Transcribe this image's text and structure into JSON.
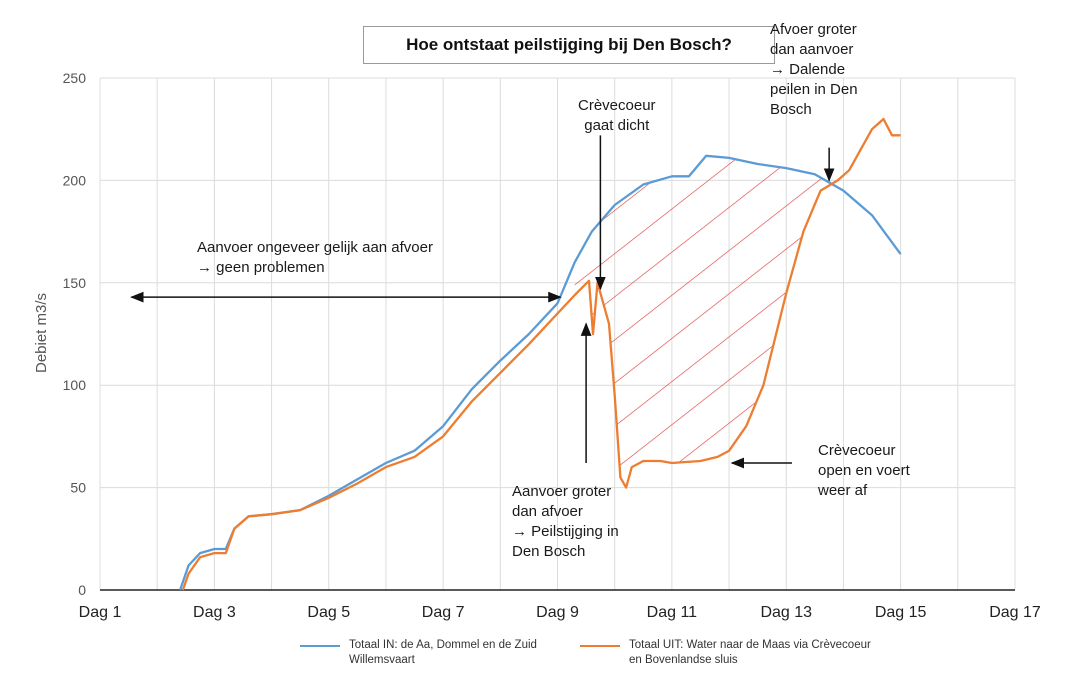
{
  "chart_data": {
    "type": "line",
    "title": "Hoe ontstaat peilstijging bij Den Bosch?",
    "ylabel": "Debiet m3/s",
    "xlabel": "",
    "ylim": [
      0,
      250
    ],
    "yticks": [
      "0",
      "50",
      "100",
      "150",
      "200",
      "250"
    ],
    "xlim": [
      1,
      17
    ],
    "xticks": [
      "Dag 1",
      "Dag 3",
      "Dag 5",
      "Dag 7",
      "Dag 9",
      "Dag 11",
      "Dag 13",
      "Dag 15",
      "Dag 17"
    ],
    "grid": true,
    "legend_position": "bottom",
    "colors": {
      "in": "#5b9bd5",
      "uit": "#ed7d31",
      "hatch": "#e03c3c"
    },
    "series": [
      {
        "name": "Totaal IN: de Aa, Dommel en de Zuid Willemsvaart",
        "x": [
          2.4,
          2.55,
          2.75,
          3.0,
          3.2,
          3.35,
          3.6,
          4.0,
          4.5,
          5.0,
          5.5,
          6.0,
          6.5,
          7.0,
          7.5,
          8.0,
          8.5,
          9.0,
          9.3,
          9.6,
          10.0,
          10.5,
          11.0,
          11.3,
          11.6,
          12.0,
          12.5,
          13.0,
          13.5,
          14.0,
          14.5,
          15.0
        ],
        "y": [
          0,
          12,
          18,
          20,
          20,
          30,
          36,
          37,
          39,
          46,
          54,
          62,
          68,
          80,
          98,
          112,
          125,
          140,
          160,
          175,
          188,
          198,
          202,
          202,
          212,
          211,
          208,
          206,
          203,
          195,
          183,
          164
        ]
      },
      {
        "name": "Totaal UIT: Water naar de Maas via Crèvecoeur en Bovenlandse sluis",
        "x": [
          2.45,
          2.55,
          2.75,
          3.0,
          3.2,
          3.35,
          3.6,
          4.0,
          4.5,
          5.0,
          5.5,
          6.0,
          6.5,
          7.0,
          7.5,
          8.0,
          8.5,
          9.0,
          9.3,
          9.55,
          9.62,
          9.7,
          9.8,
          9.9,
          10.0,
          10.1,
          10.2,
          10.3,
          10.5,
          10.8,
          11.0,
          11.5,
          11.8,
          12.0,
          12.3,
          12.6,
          13.0,
          13.3,
          13.6,
          13.9,
          14.1,
          14.3,
          14.5,
          14.7,
          14.85,
          15.0
        ],
        "y": [
          0,
          8,
          16,
          18,
          18,
          30,
          36,
          37,
          39,
          45,
          52,
          60,
          65,
          75,
          92,
          106,
          120,
          135,
          144,
          151,
          125,
          150,
          140,
          130,
          95,
          55,
          50,
          60,
          63,
          63,
          62,
          63,
          65,
          68,
          80,
          100,
          145,
          175,
          195,
          200,
          205,
          215,
          225,
          230,
          222,
          222
        ]
      }
    ],
    "annotations": {
      "zone_left": [
        "Aanvoer ongeveer gelijk aan afvoer",
        "→ geen problemen"
      ],
      "closing": [
        "Crèvecoeur",
        "gaat dicht"
      ],
      "rise": [
        "Aanvoer groter",
        "dan afvoer",
        "→ Peilstijging in",
        "Den Bosch"
      ],
      "reopen": [
        "Crèvecoeur",
        "open en voert",
        "weer af"
      ],
      "fall": [
        "Afvoer groter",
        "dan aanvoer",
        "→ Dalende",
        "peilen in Den",
        "Bosch"
      ]
    }
  }
}
